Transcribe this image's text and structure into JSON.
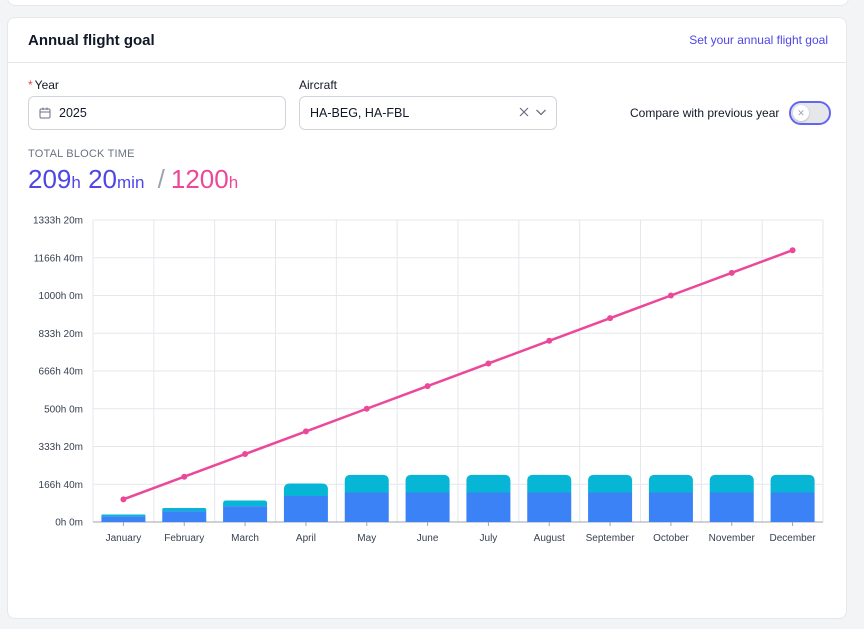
{
  "card": {
    "title": "Annual flight goal",
    "set_goal_link": "Set your annual flight goal"
  },
  "filters": {
    "year_label": "Year",
    "year_required_mark": "*",
    "year_value": "2025",
    "aircraft_label": "Aircraft",
    "aircraft_value": "HA-BEG, HA-FBL",
    "compare_label": "Compare with previous year",
    "compare_enabled": false
  },
  "summary": {
    "label": "TOTAL BLOCK TIME",
    "hours": "209",
    "hours_unit": "h",
    "minutes": "20",
    "minutes_unit": "min",
    "separator": "/",
    "goal_hours": "1200",
    "goal_unit": "h"
  },
  "chart_data": {
    "type": "bar",
    "categories": [
      "January",
      "February",
      "March",
      "April",
      "May",
      "June",
      "July",
      "August",
      "September",
      "October",
      "November",
      "December"
    ],
    "y_tick_labels": [
      "0h 0m",
      "166h 40m",
      "333h 20m",
      "500h 0m",
      "666h 40m",
      "833h 20m",
      "1000h 0m",
      "1166h 40m",
      "1333h 20m"
    ],
    "ylim": [
      0,
      1333.33
    ],
    "series": [
      {
        "values": [
          25,
          48,
          70,
          115,
          130,
          130,
          130,
          130,
          130,
          130,
          130,
          130
        ],
        "color": "#3b82f6",
        "stacked": true
      },
      {
        "values": [
          8,
          14,
          25,
          55,
          78,
          78,
          78,
          78,
          78,
          78,
          78,
          78
        ],
        "color": "#06b6d4",
        "stacked": true
      },
      {
        "type": "line",
        "values": [
          100,
          200,
          300,
          400,
          500,
          600,
          700,
          800,
          900,
          1000,
          1100,
          1200
        ],
        "color": "#ec4899"
      }
    ],
    "grid": true
  }
}
